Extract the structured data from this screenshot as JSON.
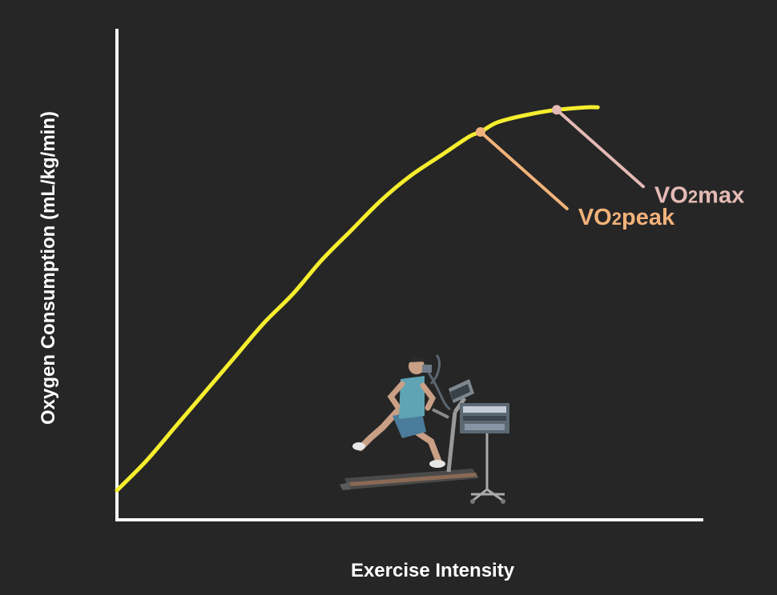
{
  "chart_data": {
    "type": "line",
    "title": "",
    "xlabel": "Exercise Intensity",
    "ylabel": "Oxygen Consumption (mL/kg/min)",
    "series": [
      {
        "color": "#f5ee2e",
        "x": [
          0,
          5,
          10,
          15,
          20,
          25,
          30,
          35,
          40,
          45,
          50,
          55,
          60,
          62,
          65,
          70,
          75,
          80,
          82
        ],
        "y": [
          6,
          12,
          19,
          26,
          33,
          40,
          46,
          53,
          59,
          65,
          70,
          74,
          78,
          79,
          81,
          82.5,
          83.5,
          84,
          84
        ]
      }
    ],
    "annotations": [
      {
        "label_prefix": "VO",
        "label_sub": "2",
        "label_suffix": "peak",
        "x": 62,
        "y": 79,
        "color": "#f1b27a"
      },
      {
        "label_prefix": "VO",
        "label_sub": "2",
        "label_suffix": "max",
        "x": 75,
        "y": 83.5,
        "color": "#e4bab4"
      }
    ],
    "xlim": [
      0,
      100
    ],
    "ylim": [
      0,
      100
    ],
    "grid": false,
    "legend": "none",
    "colors": {
      "background": "#262626",
      "axes": "#ffffff",
      "text": "#ffffff"
    },
    "illustration": "runner-on-treadmill-icon"
  }
}
